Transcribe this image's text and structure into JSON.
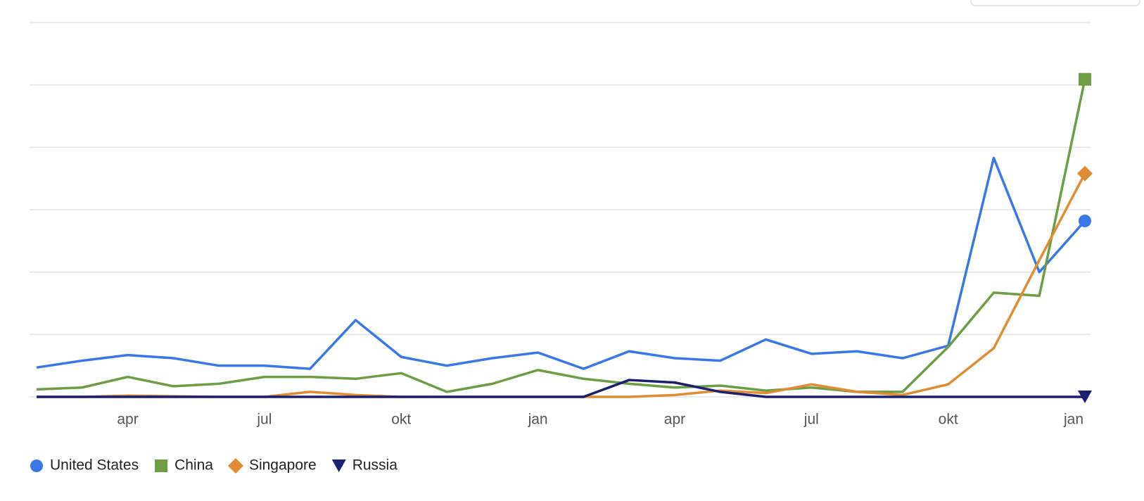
{
  "chart_data": {
    "type": "line",
    "categories": [
      null,
      null,
      "apr",
      null,
      null,
      "jul",
      null,
      null,
      "okt",
      null,
      null,
      "jan",
      null,
      null,
      "apr",
      null,
      null,
      "jul",
      null,
      null,
      "okt",
      null,
      null,
      "jan"
    ],
    "series": [
      {
        "name": "United States",
        "color": "#3b78e7",
        "marker": "circle",
        "values": [
          0.47,
          0.58,
          0.67,
          0.62,
          0.5,
          0.5,
          0.45,
          1.23,
          0.64,
          0.5,
          0.62,
          0.71,
          0.45,
          0.73,
          0.62,
          0.58,
          0.92,
          0.69,
          0.73,
          0.62,
          0.82,
          3.83,
          2.0,
          2.82
        ]
      },
      {
        "name": "China",
        "color": "#6d9e45",
        "marker": "square",
        "values": [
          0.12,
          0.15,
          0.32,
          0.17,
          0.21,
          0.32,
          0.32,
          0.29,
          0.38,
          0.08,
          0.21,
          0.43,
          0.29,
          0.21,
          0.15,
          0.18,
          0.1,
          0.15,
          0.08,
          0.08,
          0.8,
          1.67,
          1.62,
          5.09
        ]
      },
      {
        "name": "Singapore",
        "color": "#e08c35",
        "marker": "diamond",
        "values": [
          0,
          0,
          0.02,
          0.01,
          0,
          0,
          0.08,
          0.03,
          0,
          0,
          0,
          0,
          0,
          0,
          0.03,
          0.1,
          0.06,
          0.2,
          0.08,
          0.03,
          0.2,
          0.78,
          2.19,
          3.58
        ]
      },
      {
        "name": "Russia",
        "color": "#1a1f6e",
        "marker": "triangle-down",
        "values": [
          0,
          0,
          0,
          0,
          0,
          0,
          0,
          0,
          0,
          0,
          0,
          0,
          0,
          0.27,
          0.23,
          0.08,
          0,
          0,
          0,
          0,
          0,
          0,
          0,
          0
        ]
      }
    ],
    "ylim": [
      0,
      6
    ],
    "yticks": [
      0,
      1,
      2,
      3,
      4,
      5,
      6
    ],
    "grid": true,
    "legend": "bottom"
  }
}
